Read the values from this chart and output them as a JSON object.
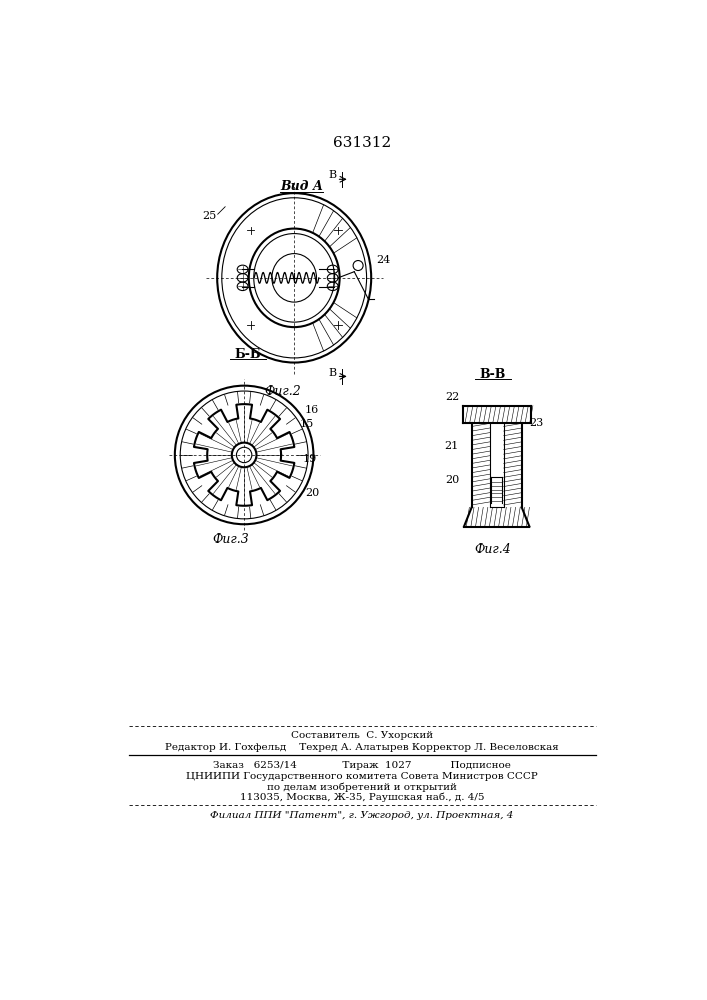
{
  "patent_number": "631312",
  "background_color": "#ffffff",
  "fig2_label": "Вид А",
  "fig2_caption": "Фиг.2",
  "fig3_caption": "Фиг.3",
  "fig4_caption": "Фиг.4",
  "section_bb": "Б-Б",
  "section_vv": "В-В",
  "label_B": "В",
  "label_25": "25",
  "label_24": "24",
  "label_16": "16",
  "label_15": "15",
  "label_19": "19",
  "label_20": "20",
  "label_22": "22",
  "label_21": "21",
  "label_23": "23",
  "footer_line1": "Составитель  С. Ухорский",
  "footer_line2": "Редактор И. Гохфельд    Техред А. Алатырев Корректор Л. Веселовская",
  "footer_line3": "Заказ   6253/14              Тираж  1027            Подписное",
  "footer_line4": "ЦНИИПИ Государственного комитета Совета Министров СССР",
  "footer_line5": "по делам изобретений и открытий",
  "footer_line6": "113035, Москва, Ж-35, Раушская наб., д. 4/5",
  "footer_line7": "Филиал ППИ \"Патент\", г. Ужгород, ул. Проектная, 4"
}
